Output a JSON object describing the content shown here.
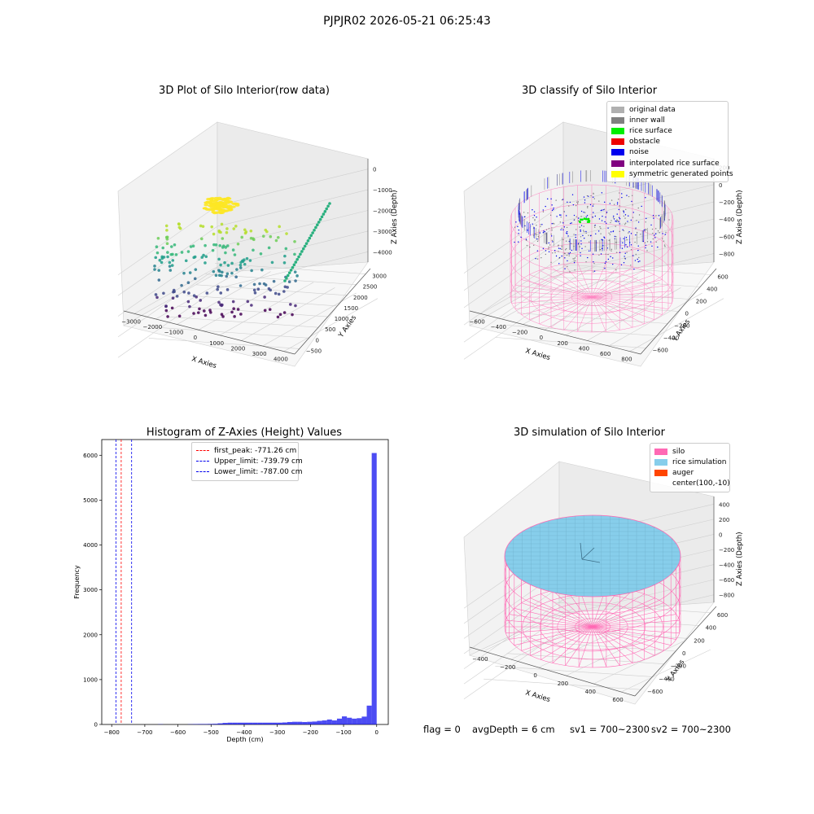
{
  "suptitle": "PJPJR02 2026-05-21 06:25:43",
  "panels": {
    "raw": {
      "title": "3D Plot of Silo Interior(row data)",
      "xlabel": "X Axies",
      "ylabel": "Y Axies",
      "zlabel": "Z Axies (Depth)",
      "xticks": [
        "−3000",
        "−2000",
        "−1000",
        "0",
        "1000",
        "2000",
        "3000",
        "4000"
      ],
      "yticks": [
        "−500",
        "0",
        "500",
        "1000",
        "1500",
        "2000",
        "2500",
        "3000"
      ],
      "zticks": [
        "0",
        "−1000",
        "−2000",
        "−3000",
        "−4000"
      ]
    },
    "classify": {
      "title": "3D classify of Silo Interior",
      "xlabel": "X Axies",
      "ylabel": "Y Axies",
      "zlabel": "Z Axies (Depth)",
      "xticks": [
        "−600",
        "−400",
        "−200",
        "0",
        "200",
        "400",
        "600",
        "800"
      ],
      "yticks": [
        "−600",
        "−400",
        "−200",
        "0",
        "200",
        "400",
        "600"
      ],
      "zticks": [
        "200",
        "0",
        "−200",
        "−400",
        "−600",
        "−800"
      ],
      "legend": [
        {
          "label": "original data",
          "color": "#b0b0b0"
        },
        {
          "label": "inner wall",
          "color": "#808080"
        },
        {
          "label": "rice surface",
          "color": "#00ee00"
        },
        {
          "label": "obstacle",
          "color": "#ee0000"
        },
        {
          "label": "noise",
          "color": "#0000ee"
        },
        {
          "label": "interpolated rice surface",
          "color": "#800080"
        },
        {
          "label": "symmetric generated points",
          "color": "#ffff00"
        }
      ]
    },
    "simulation": {
      "title": "3D simulation of Silo Interior",
      "xlabel": "X Axies",
      "ylabel": "Y Axies",
      "zlabel": "Z Axies (Depth)",
      "xticks": [
        "−400",
        "−200",
        "0",
        "200",
        "400",
        "600"
      ],
      "yticks": [
        "−600",
        "−400",
        "−200",
        "0",
        "200",
        "400",
        "600"
      ],
      "zticks": [
        "400",
        "200",
        "0",
        "−200",
        "−400",
        "−600",
        "−800"
      ],
      "legend": [
        {
          "label": "silo",
          "color": "#ff69b4"
        },
        {
          "label": "rice simulation",
          "color": "#87ceeb"
        },
        {
          "label": "auger",
          "color": "#ff4500"
        },
        {
          "label": "center(100,-10)",
          "color": ""
        }
      ]
    }
  },
  "status": {
    "flag": "flag = 0",
    "avg_depth": "avgDepth = 6 cm",
    "sv1": "sv1 = 700~2300",
    "sv2": "sv2 = 700~2300"
  },
  "chart_data": [
    {
      "type": "scatter",
      "title": "3D Plot of Silo Interior(row data)",
      "xlabel": "X Axies",
      "ylabel": "Y Axies",
      "zlabel": "Z Axies (Depth)",
      "xlim": [
        -3500,
        4500
      ],
      "ylim": [
        -700,
        3400
      ],
      "zlim": [
        -4600,
        200
      ]
    },
    {
      "type": "scatter",
      "title": "3D classify of Silo Interior",
      "xlabel": "X Axies",
      "ylabel": "Y Axies",
      "zlabel": "Z Axies (Depth)",
      "xlim": [
        -650,
        850
      ],
      "ylim": [
        -700,
        700
      ],
      "zlim": [
        -950,
        300
      ],
      "series": [
        {
          "name": "original data"
        },
        {
          "name": "inner wall"
        },
        {
          "name": "rice surface"
        },
        {
          "name": "obstacle"
        },
        {
          "name": "noise"
        },
        {
          "name": "interpolated rice surface"
        },
        {
          "name": "symmetric generated points"
        }
      ]
    },
    {
      "type": "bar",
      "title": "Histogram of Z-Axies (Height) Values",
      "xlabel": "Depth (cm)",
      "ylabel": "Frequency",
      "xlim": [
        -830,
        35
      ],
      "ylim": [
        0,
        6350
      ],
      "xticks": [
        -800,
        -700,
        -600,
        -500,
        -400,
        -300,
        -200,
        -100,
        0
      ],
      "yticks": [
        0,
        1000,
        2000,
        3000,
        4000,
        5000,
        6000
      ],
      "bin_width": 15,
      "bin_starts": [
        -660,
        -570,
        -555,
        -540,
        -525,
        -510,
        -495,
        -480,
        -465,
        -450,
        -435,
        -420,
        -405,
        -390,
        -375,
        -360,
        -345,
        -330,
        -315,
        -300,
        -285,
        -270,
        -255,
        -240,
        -225,
        -210,
        -195,
        -180,
        -165,
        -150,
        -135,
        -120,
        -105,
        -90,
        -75,
        -60,
        -45,
        -30,
        -15
      ],
      "values": [
        5,
        5,
        8,
        10,
        10,
        12,
        15,
        25,
        35,
        40,
        40,
        40,
        40,
        40,
        40,
        40,
        40,
        40,
        40,
        40,
        45,
        55,
        60,
        60,
        55,
        60,
        65,
        80,
        90,
        110,
        90,
        130,
        180,
        150,
        130,
        140,
        175,
        420,
        6050
      ],
      "bar_color": "#0000ee",
      "vlines": [
        {
          "label": "first_peak: -771.26 cm",
          "x": -771.26,
          "color": "#ff0000",
          "style": "dashed"
        },
        {
          "label": "Upper_limit: -739.79 cm",
          "x": -739.79,
          "color": "#0000ee",
          "style": "dashed"
        },
        {
          "label": "Lower_limit: -787.00 cm",
          "x": -787.0,
          "color": "#0000ee",
          "style": "dashed"
        }
      ],
      "legend_placement": "top-center"
    },
    {
      "type": "scatter",
      "title": "3D simulation of Silo Interior",
      "xlabel": "X Axies",
      "ylabel": "Y Axies",
      "zlabel": "Z Axies (Depth)",
      "xlim": [
        -500,
        750
      ],
      "ylim": [
        -700,
        700
      ],
      "zlim": [
        -950,
        450
      ],
      "series": [
        {
          "name": "silo"
        },
        {
          "name": "rice simulation"
        },
        {
          "name": "auger"
        },
        {
          "name": "center(100,-10)"
        }
      ]
    }
  ]
}
